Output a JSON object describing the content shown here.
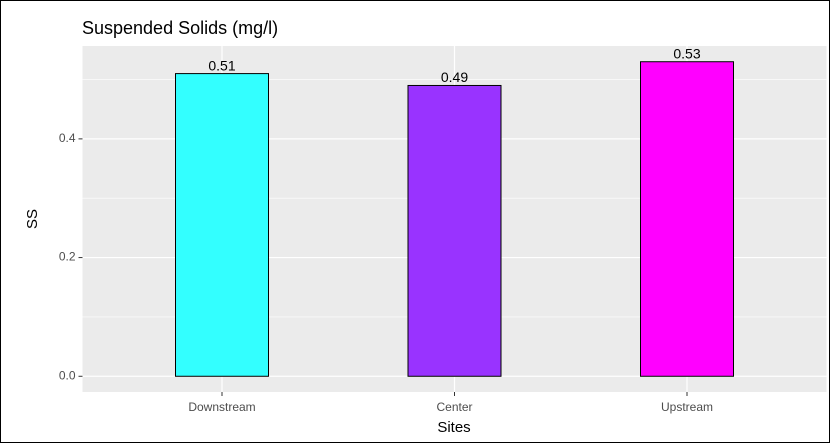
{
  "chart_data": {
    "type": "bar",
    "title": "Suspended Solids (mg/l)",
    "x_label": "Sites",
    "y_label": "SS",
    "categories": [
      "Downstream",
      "Center",
      "Upstream"
    ],
    "values": [
      0.51,
      0.49,
      0.53
    ],
    "colors": [
      "#33ffff",
      "#9933ff",
      "#ff00ff"
    ],
    "ylim": [
      -0.0265,
      0.5565
    ],
    "yticks": [
      {
        "value": 0,
        "label": "0.0"
      },
      0.2,
      0.4
    ],
    "minor_yticks": [
      0.1,
      0.3,
      0.5
    ],
    "grid": true
  }
}
